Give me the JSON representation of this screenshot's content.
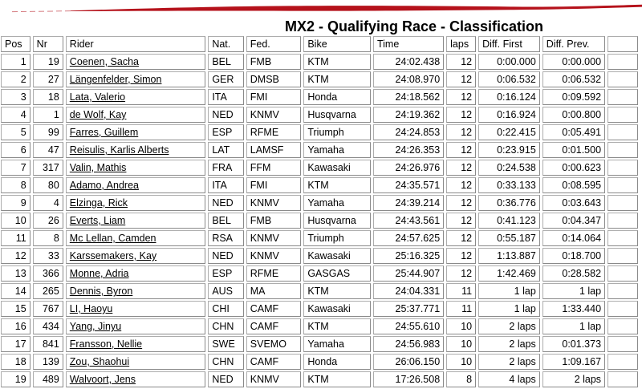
{
  "page": {
    "title": "MX2 - Qualifying Race - Classification"
  },
  "brand": {
    "stroke_color": "#b5121b"
  },
  "table": {
    "columns": [
      "Pos",
      "Nr",
      "Rider",
      "Nat.",
      "Fed.",
      "Bike",
      "Time",
      "laps",
      "Diff. First",
      "Diff. Prev."
    ],
    "column_keys": [
      "pos",
      "nr",
      "rider",
      "nat",
      "fed",
      "bike",
      "time",
      "laps",
      "diff-first",
      "diff-prev"
    ],
    "rows": [
      [
        "1",
        "19",
        "Coenen, Sacha",
        "BEL",
        "FMB",
        "KTM",
        "24:02.438",
        "12",
        "0:00.000",
        "0:00.000"
      ],
      [
        "2",
        "27",
        "Längenfelder, Simon",
        "GER",
        "DMSB",
        "KTM",
        "24:08.970",
        "12",
        "0:06.532",
        "0:06.532"
      ],
      [
        "3",
        "18",
        "Lata, Valerio",
        "ITA",
        "FMI",
        "Honda",
        "24:18.562",
        "12",
        "0:16.124",
        "0:09.592"
      ],
      [
        "4",
        "1",
        "de Wolf, Kay",
        "NED",
        "KNMV",
        "Husqvarna",
        "24:19.362",
        "12",
        "0:16.924",
        "0:00.800"
      ],
      [
        "5",
        "99",
        "Farres, Guillem",
        "ESP",
        "RFME",
        "Triumph",
        "24:24.853",
        "12",
        "0:22.415",
        "0:05.491"
      ],
      [
        "6",
        "47",
        "Reisulis, Karlis Alberts",
        "LAT",
        "LAMSF",
        "Yamaha",
        "24:26.353",
        "12",
        "0:23.915",
        "0:01.500"
      ],
      [
        "7",
        "317",
        "Valin, Mathis",
        "FRA",
        "FFM",
        "Kawasaki",
        "24:26.976",
        "12",
        "0:24.538",
        "0:00.623"
      ],
      [
        "8",
        "80",
        "Adamo, Andrea",
        "ITA",
        "FMI",
        "KTM",
        "24:35.571",
        "12",
        "0:33.133",
        "0:08.595"
      ],
      [
        "9",
        "4",
        "Elzinga, Rick",
        "NED",
        "KNMV",
        "Yamaha",
        "24:39.214",
        "12",
        "0:36.776",
        "0:03.643"
      ],
      [
        "10",
        "26",
        "Everts, Liam",
        "BEL",
        "FMB",
        "Husqvarna",
        "24:43.561",
        "12",
        "0:41.123",
        "0:04.347"
      ],
      [
        "11",
        "8",
        "Mc Lellan, Camden",
        "RSA",
        "KNMV",
        "Triumph",
        "24:57.625",
        "12",
        "0:55.187",
        "0:14.064"
      ],
      [
        "12",
        "33",
        "Karssemakers, Kay",
        "NED",
        "KNMV",
        "Kawasaki",
        "25:16.325",
        "12",
        "1:13.887",
        "0:18.700"
      ],
      [
        "13",
        "366",
        "Monne, Adria",
        "ESP",
        "RFME",
        "GASGAS",
        "25:44.907",
        "12",
        "1:42.469",
        "0:28.582"
      ],
      [
        "14",
        "265",
        "Dennis, Byron",
        "AUS",
        "MA",
        "KTM",
        "24:04.331",
        "11",
        "1 lap",
        "1 lap"
      ],
      [
        "15",
        "767",
        "LI, Haoyu",
        "CHI",
        "CAMF",
        "Kawasaki",
        "25:37.771",
        "11",
        "1 lap",
        "1:33.440"
      ],
      [
        "16",
        "434",
        "Yang, Jinyu",
        "CHN",
        "CAMF",
        "KTM",
        "24:55.610",
        "10",
        "2 laps",
        "1 lap"
      ],
      [
        "17",
        "841",
        "Fransson, Nellie",
        "SWE",
        "SVEMO",
        "Yamaha",
        "24:56.983",
        "10",
        "2 laps",
        "0:01.373"
      ],
      [
        "18",
        "139",
        "Zou, Shaohui",
        "CHN",
        "CAMF",
        "Honda",
        "26:06.150",
        "10",
        "2 laps",
        "1:09.167"
      ],
      [
        "19",
        "489",
        "Walvoort, Jens",
        "NED",
        "KNMV",
        "KTM",
        "17:26.508",
        "8",
        "4 laps",
        "2 laps"
      ]
    ]
  }
}
